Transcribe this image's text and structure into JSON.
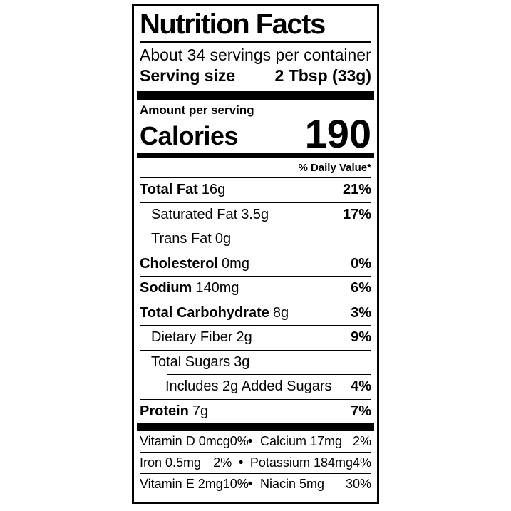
{
  "colors": {
    "ink": "#000000",
    "paper": "#ffffff"
  },
  "label": {
    "title": "Nutrition Facts",
    "servings_per_container": "About 34 servings per container",
    "serving_size_label": "Serving size",
    "serving_size_value": "2 Tbsp (33g)",
    "amount_per_serving": "Amount per serving",
    "calories_label": "Calories",
    "calories_value": "190",
    "daily_value_header": "% Daily Value*",
    "bullet": "•",
    "nutrients": [
      {
        "name": "Total Fat",
        "amount": "16g",
        "dv": "21%"
      },
      {
        "name": "Saturated Fat",
        "amount": "3.5g",
        "dv": "17%"
      },
      {
        "name": "Trans Fat",
        "amount": "0g",
        "dv": ""
      },
      {
        "name": "Cholesterol",
        "amount": "0mg",
        "dv": "0%"
      },
      {
        "name": "Sodium",
        "amount": "140mg",
        "dv": "6%"
      },
      {
        "name": "Total Carbohydrate",
        "amount": "8g",
        "dv": "3%"
      },
      {
        "name": "Dietary Fiber",
        "amount": "2g",
        "dv": "9%"
      },
      {
        "name": "Total Sugars",
        "amount": "3g",
        "dv": ""
      },
      {
        "name": "Includes 2g Added Sugars",
        "amount": "",
        "dv": "4%"
      },
      {
        "name": "Protein",
        "amount": "7g",
        "dv": "7%"
      }
    ],
    "micronutrients": [
      {
        "left": {
          "name": "Vitamin D 0mcg",
          "dv": "0%"
        },
        "right": {
          "name": "Calcium 17mg",
          "dv": "2%"
        }
      },
      {
        "left": {
          "name": "Iron 0.5mg",
          "dv": "2%"
        },
        "right": {
          "name": "Potassium 184mg",
          "dv": "4%"
        }
      },
      {
        "left": {
          "name": "Vitamin E 2mg",
          "dv": "10%"
        },
        "right": {
          "name": "Niacin 5mg",
          "dv": "30%"
        }
      }
    ]
  }
}
